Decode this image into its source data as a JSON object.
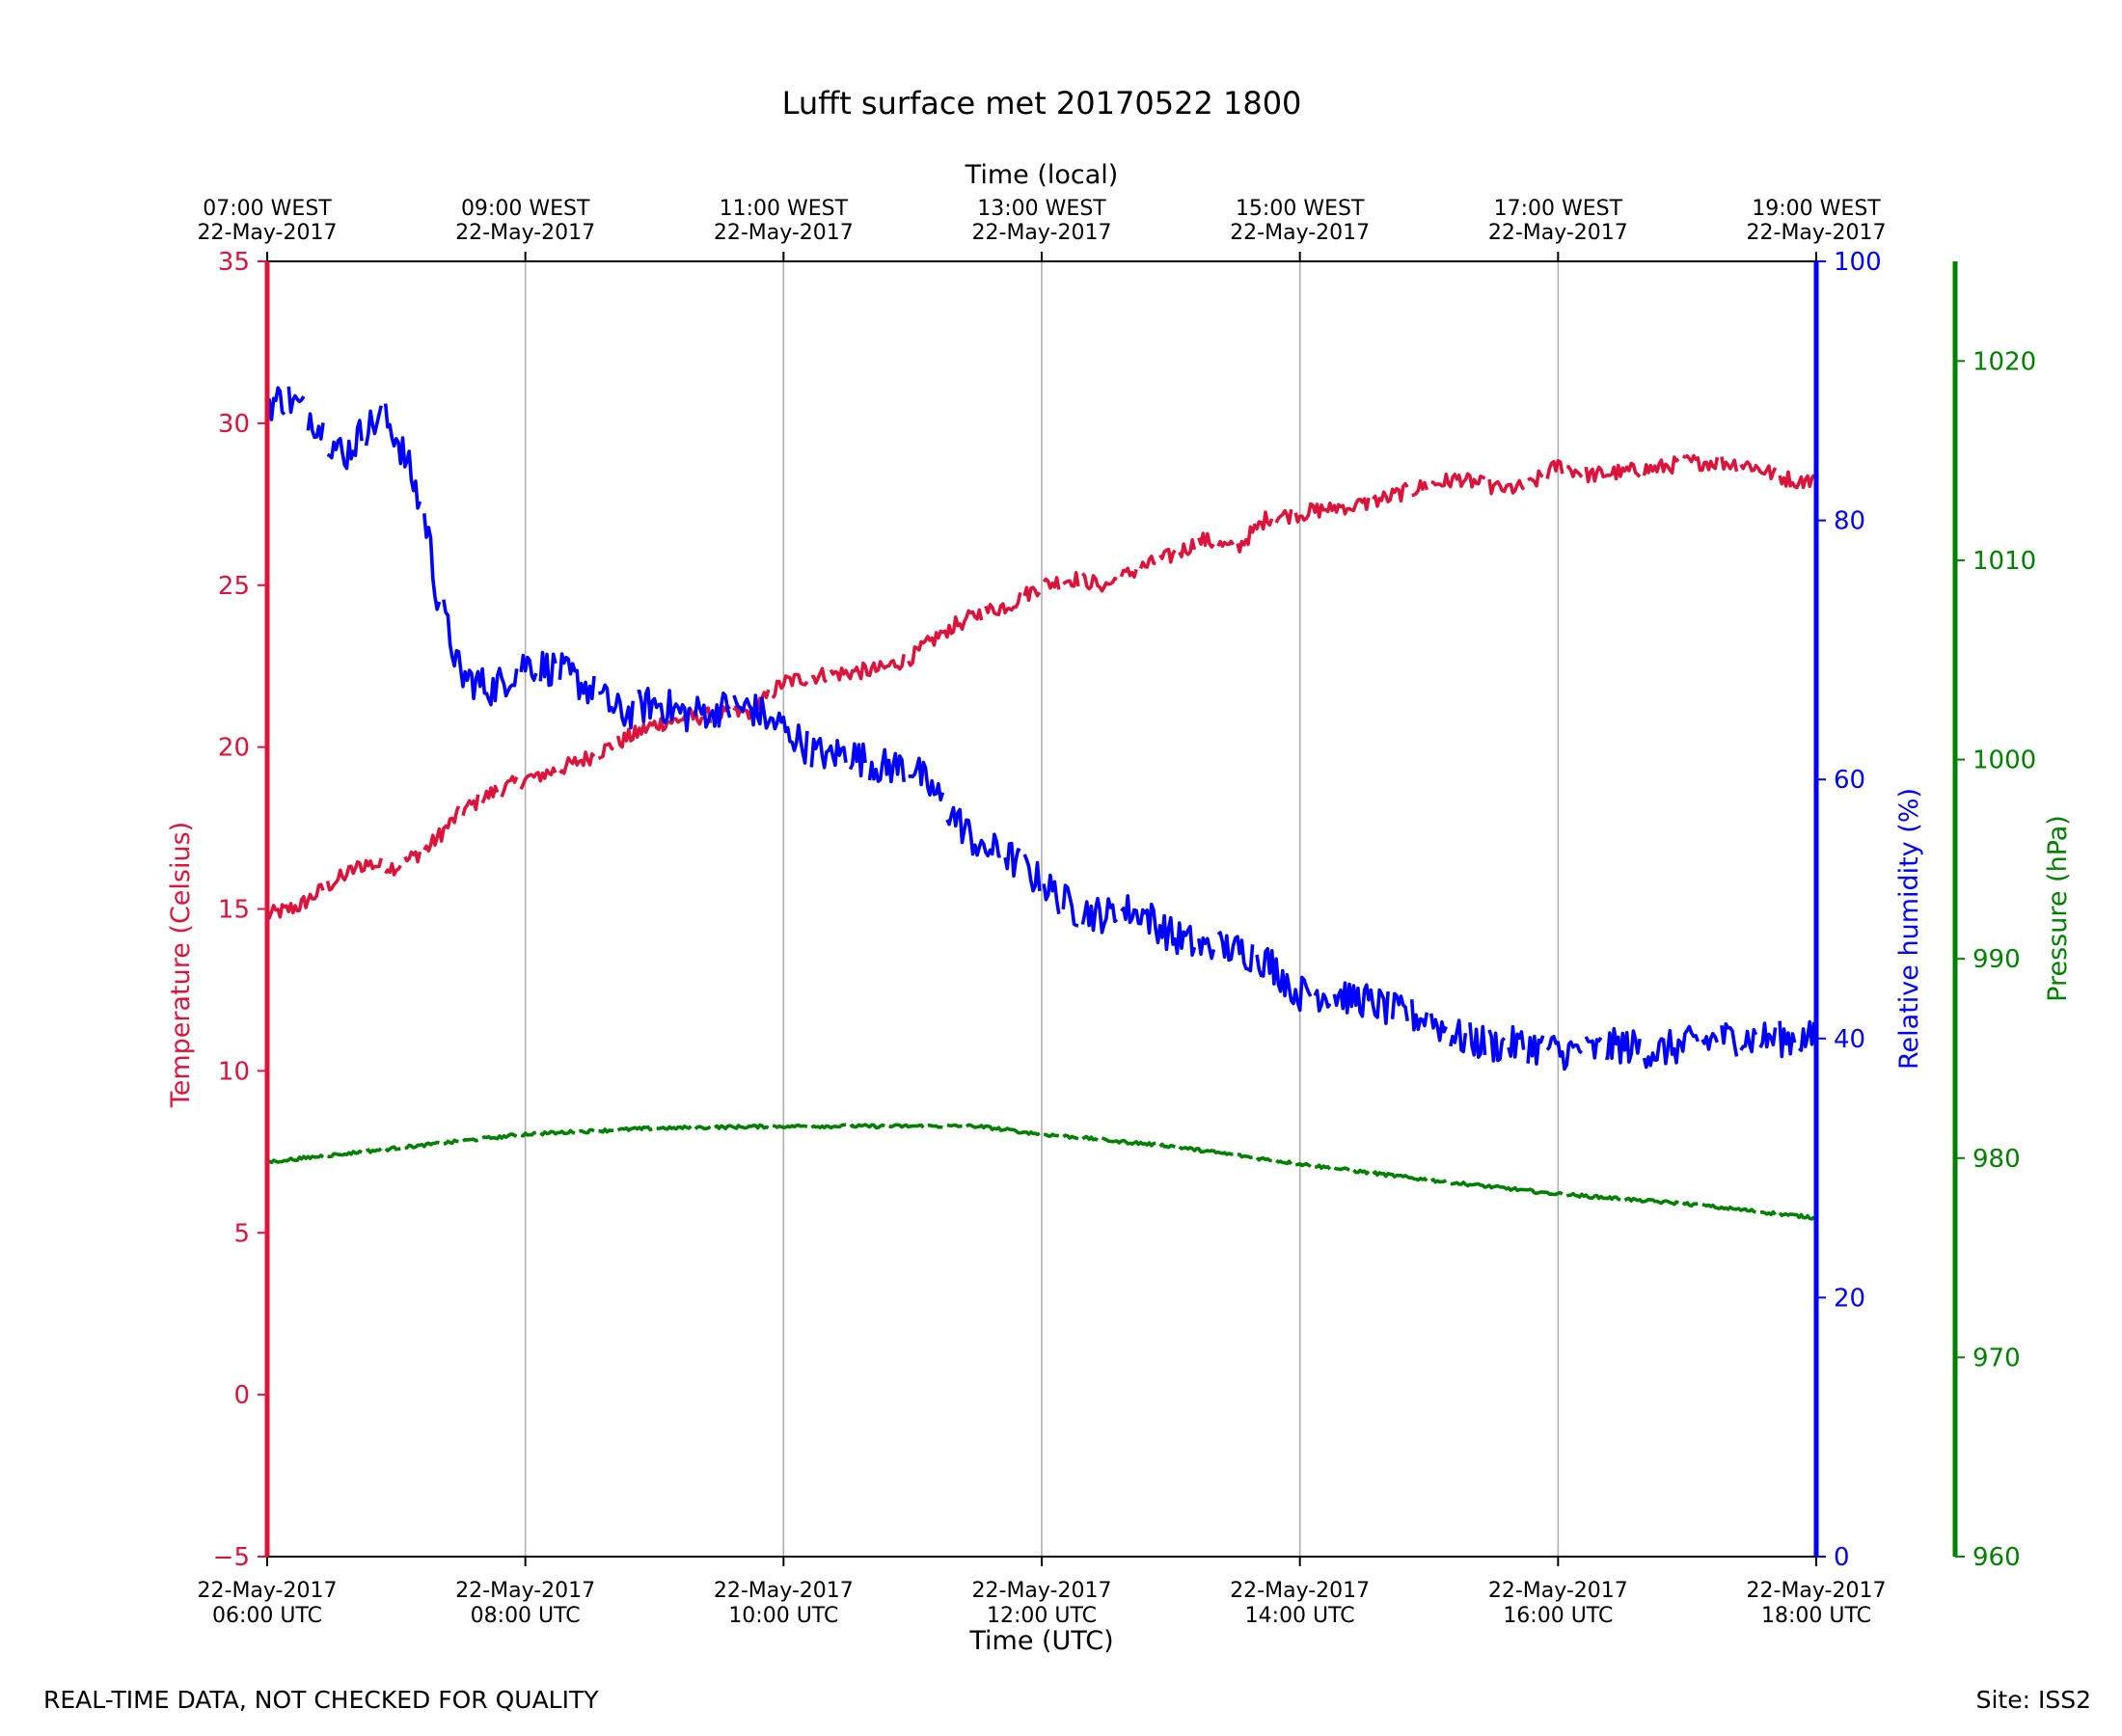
{
  "chart_data": {
    "type": "line",
    "title": "Lufft surface met 20170522 1800",
    "top_axis_label": "Time (local)",
    "xlabel": "Time (UTC)",
    "x_range_hours": [
      0,
      12
    ],
    "x_ticks_hours": [
      0,
      2,
      4,
      6,
      8,
      10,
      12
    ],
    "x_tick_labels_utc": [
      [
        "22-May-2017",
        "06:00 UTC"
      ],
      [
        "22-May-2017",
        "08:00 UTC"
      ],
      [
        "22-May-2017",
        "10:00 UTC"
      ],
      [
        "22-May-2017",
        "12:00 UTC"
      ],
      [
        "22-May-2017",
        "14:00 UTC"
      ],
      [
        "22-May-2017",
        "16:00 UTC"
      ],
      [
        "22-May-2017",
        "18:00 UTC"
      ]
    ],
    "x_tick_labels_local": [
      [
        "07:00 WEST",
        "22-May-2017"
      ],
      [
        "09:00 WEST",
        "22-May-2017"
      ],
      [
        "11:00 WEST",
        "22-May-2017"
      ],
      [
        "13:00 WEST",
        "22-May-2017"
      ],
      [
        "15:00 WEST",
        "22-May-2017"
      ],
      [
        "17:00 WEST",
        "22-May-2017"
      ],
      [
        "19:00 WEST",
        "22-May-2017"
      ]
    ],
    "vertical_grid": true,
    "axes": {
      "temperature": {
        "label": "Temperature (Celsius)",
        "color": "#dc143c",
        "range": [
          -5,
          35
        ],
        "ticks": [
          -5,
          0,
          5,
          10,
          15,
          20,
          25,
          30,
          35
        ],
        "tick_labels": [
          "−5",
          "0",
          "5",
          "10",
          "15",
          "20",
          "25",
          "30",
          "35"
        ]
      },
      "humidity": {
        "label": "Relative humidity (%)",
        "color": "#0000ff",
        "range": [
          0,
          100
        ],
        "ticks": [
          0,
          20,
          40,
          60,
          80,
          100
        ],
        "tick_labels": [
          "0",
          "20",
          "40",
          "60",
          "80",
          "100"
        ]
      },
      "pressure": {
        "label": "Pressure (hPa)",
        "color": "#008000",
        "range": [
          960,
          1025
        ],
        "ticks": [
          960,
          970,
          980,
          990,
          1000,
          1010,
          1020
        ],
        "tick_labels": [
          "960",
          "970",
          "980",
          "990",
          "1000",
          "1010",
          "1020"
        ]
      }
    },
    "series": [
      {
        "name": "Temperature",
        "axis": "temperature",
        "color": "#dc143c",
        "x_hours": [
          0,
          0.25,
          0.5,
          0.75,
          1.0,
          1.25,
          1.5,
          1.75,
          2.0,
          2.25,
          2.5,
          2.75,
          3.0,
          3.25,
          3.5,
          3.75,
          4.0,
          4.25,
          4.5,
          4.75,
          5.0,
          5.25,
          5.5,
          5.75,
          6.0,
          6.25,
          6.5,
          6.75,
          7.0,
          7.25,
          7.5,
          7.75,
          8.0,
          8.25,
          8.5,
          8.75,
          9.0,
          9.25,
          9.5,
          9.75,
          10.0,
          10.25,
          10.5,
          10.75,
          11.0,
          11.25,
          11.5,
          11.75,
          12.0
        ],
        "values": [
          14.8,
          15.1,
          15.8,
          16.4,
          16.3,
          16.9,
          18.0,
          18.6,
          19.0,
          19.3,
          19.7,
          20.2,
          20.7,
          20.9,
          21.0,
          21.1,
          22.0,
          22.2,
          22.3,
          22.4,
          22.8,
          23.6,
          24.1,
          24.4,
          25.0,
          25.2,
          25.0,
          25.5,
          25.9,
          26.4,
          26.1,
          27.1,
          27.2,
          27.4,
          27.5,
          27.8,
          28.1,
          28.3,
          28.0,
          28.0,
          28.7,
          28.4,
          28.5,
          28.6,
          28.8,
          28.8,
          28.7,
          28.3,
          28.2
        ],
        "mode": "jitter"
      },
      {
        "name": "Relative humidity",
        "axis": "humidity",
        "color": "#0000ff",
        "x_hours": [
          0,
          0.15,
          0.35,
          0.5,
          0.6,
          0.75,
          0.9,
          1.0,
          1.1,
          1.25,
          1.3,
          1.5,
          1.75,
          2.0,
          2.25,
          2.5,
          2.75,
          3.0,
          3.25,
          3.5,
          3.75,
          4.0,
          4.25,
          4.5,
          4.75,
          5.0,
          5.25,
          5.5,
          5.75,
          6.0,
          6.25,
          6.5,
          6.75,
          7.0,
          7.25,
          7.5,
          7.75,
          8.0,
          8.25,
          8.5,
          8.75,
          9.0,
          9.25,
          9.5,
          9.75,
          10.0,
          10.25,
          10.5,
          10.75,
          11.0,
          11.25,
          11.5,
          11.75,
          12.0
        ],
        "values": [
          89,
          89.5,
          88,
          86,
          85,
          87,
          88,
          86.5,
          84,
          79,
          75,
          68,
          67,
          69,
          68.5,
          67,
          65,
          66,
          65,
          65.5,
          65.5,
          64,
          62,
          62,
          61,
          61,
          58,
          55,
          54,
          52,
          50,
          49.5,
          50,
          48,
          47,
          47,
          46,
          43.5,
          43.5,
          43,
          42,
          41.5,
          40,
          39.5,
          39.5,
          39,
          39,
          39.5,
          39,
          39.5,
          40,
          40,
          40,
          40
        ],
        "mode": "jitter"
      },
      {
        "name": "Pressure",
        "axis": "pressure",
        "color": "#008000",
        "x_hours": [
          0,
          1,
          2,
          3,
          4,
          5,
          5.5,
          6,
          7,
          8,
          9,
          10,
          11,
          12
        ],
        "values": [
          979.8,
          980.5,
          981.2,
          981.5,
          981.6,
          981.6,
          981.6,
          981.2,
          980.6,
          979.7,
          978.9,
          978.2,
          977.7,
          977.0
        ],
        "mode": "smooth"
      }
    ]
  },
  "footer": {
    "left_note": "REAL-TIME DATA, NOT CHECKED FOR QUALITY",
    "right_note": "Site: ISS2"
  }
}
